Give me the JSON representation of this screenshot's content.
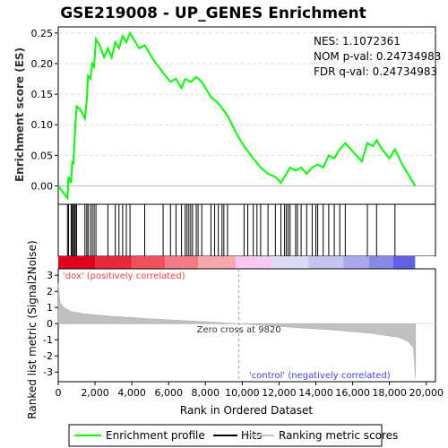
{
  "chart_data": {
    "type": "line",
    "title": "GSE219008 - UP_GENES Enrichment",
    "stats": {
      "nes": "NES: 1.1072361",
      "pval": "NOM p-val: 0.24734983",
      "fdr": "FDR q-val: 0.24734983"
    },
    "es_panel": {
      "ylabel": "Enrichment score (ES)",
      "ylim": [
        -0.03,
        0.26
      ],
      "yticks": [
        0.0,
        0.05,
        0.1,
        0.15,
        0.2,
        0.25
      ],
      "ytick_labels": [
        "0.00",
        "0.05",
        "0.10",
        "0.15",
        "0.20",
        "0.25"
      ],
      "line_color": "#00ff00",
      "points": [
        [
          0,
          0.0
        ],
        [
          500,
          -0.02
        ],
        [
          560,
          0.015
        ],
        [
          700,
          0.005
        ],
        [
          760,
          0.04
        ],
        [
          820,
          0.035
        ],
        [
          880,
          0.07
        ],
        [
          930,
          0.1
        ],
        [
          1000,
          0.13
        ],
        [
          1200,
          0.125
        ],
        [
          1450,
          0.11
        ],
        [
          1550,
          0.14
        ],
        [
          1620,
          0.18
        ],
        [
          1750,
          0.175
        ],
        [
          1850,
          0.2
        ],
        [
          1950,
          0.195
        ],
        [
          2050,
          0.24
        ],
        [
          2250,
          0.23
        ],
        [
          2500,
          0.21
        ],
        [
          2700,
          0.225
        ],
        [
          2900,
          0.21
        ],
        [
          3100,
          0.235
        ],
        [
          3300,
          0.225
        ],
        [
          3500,
          0.245
        ],
        [
          3700,
          0.235
        ],
        [
          3900,
          0.25
        ],
        [
          4100,
          0.24
        ],
        [
          4400,
          0.225
        ],
        [
          4700,
          0.23
        ],
        [
          5200,
          0.205
        ],
        [
          5700,
          0.185
        ],
        [
          6100,
          0.17
        ],
        [
          6400,
          0.175
        ],
        [
          6700,
          0.16
        ],
        [
          6900,
          0.175
        ],
        [
          7200,
          0.17
        ],
        [
          7500,
          0.178
        ],
        [
          7800,
          0.17
        ],
        [
          8300,
          0.145
        ],
        [
          8700,
          0.135
        ],
        [
          9200,
          0.115
        ],
        [
          9700,
          0.085
        ],
        [
          10100,
          0.065
        ],
        [
          10600,
          0.045
        ],
        [
          11000,
          0.03
        ],
        [
          11400,
          0.02
        ],
        [
          11800,
          0.015
        ],
        [
          12100,
          0.005
        ],
        [
          12400,
          0.02
        ],
        [
          12600,
          0.03
        ],
        [
          12900,
          0.025
        ],
        [
          13200,
          0.03
        ],
        [
          13500,
          0.02
        ],
        [
          13800,
          0.03
        ],
        [
          14100,
          0.035
        ],
        [
          14400,
          0.03
        ],
        [
          14700,
          0.05
        ],
        [
          15000,
          0.045
        ],
        [
          15300,
          0.06
        ],
        [
          15600,
          0.07
        ],
        [
          15900,
          0.06
        ],
        [
          16200,
          0.05
        ],
        [
          16500,
          0.04
        ],
        [
          16800,
          0.07
        ],
        [
          17100,
          0.065
        ],
        [
          17300,
          0.075
        ],
        [
          17600,
          0.06
        ],
        [
          18000,
          0.045
        ],
        [
          18300,
          0.06
        ],
        [
          18700,
          0.035
        ],
        [
          19000,
          0.02
        ],
        [
          19400,
          0.0
        ]
      ]
    },
    "hits_panel": {
      "hits": [
        500,
        560,
        700,
        760,
        820,
        880,
        930,
        1000,
        1450,
        1550,
        1620,
        1750,
        1850,
        1950,
        2050,
        2700,
        3100,
        3300,
        3500,
        3700,
        3900,
        4700,
        5700,
        6100,
        6400,
        6700,
        6900,
        7000,
        7100,
        7200,
        7300,
        7500,
        7600,
        7800,
        8300,
        8500,
        8700,
        8900,
        9000,
        9200,
        10100,
        10300,
        10600,
        10800,
        11000,
        11400,
        11800,
        12100,
        12300,
        12400,
        12500,
        12600,
        12900,
        13000,
        13200,
        13500,
        13800,
        14000,
        14100,
        14400,
        14700,
        15000,
        15300,
        15600,
        16800,
        17300,
        18300
      ],
      "heatmap_colors": [
        "#e0001e",
        "#e8283c",
        "#f0505c",
        "#f47a84",
        "#f7a8ae",
        "#f8c8f0",
        "#dcdcf8",
        "#c4c4f0",
        "#a8a8ec",
        "#8888e8",
        "#6060e4",
        "#2020d8"
      ],
      "heatmap_bounds": [
        0,
        2000,
        4000,
        5800,
        7600,
        9650,
        11600,
        13600,
        15500,
        16900,
        18200,
        19400
      ],
      "heatmap_colors_used": [
        "#e0101e",
        "#f06070",
        "#f4909a",
        "#f8c0e8",
        "#d8d8f8",
        "#c0c0f4",
        "#a0a0ec",
        "#7070e4",
        "#3030d0"
      ]
    },
    "metric_panel": {
      "ylabel": "Ranked list metric (Signal2Noise)",
      "ylim": [
        -3.6,
        3.4
      ],
      "yticks": [
        -3,
        -2,
        -1,
        0,
        1,
        2,
        3
      ],
      "ytick_labels": [
        "-3",
        "-2",
        "-1",
        "0",
        "1",
        "2",
        "3"
      ],
      "fill_color": "#c0c0c0",
      "zero_cross": 9820,
      "zero_cross_label": "Zero cross at 9820",
      "pos_label": "'dox' (positively correlated)",
      "neg_label": "'control' (negatively correlated)",
      "pos_color": "#ff4040",
      "neg_color": "#4040ff",
      "curve": [
        [
          0,
          2.5
        ],
        [
          100,
          1.3
        ],
        [
          300,
          1.0
        ],
        [
          700,
          0.75
        ],
        [
          1500,
          0.6
        ],
        [
          3000,
          0.45
        ],
        [
          5000,
          0.3
        ],
        [
          7000,
          0.18
        ],
        [
          9000,
          0.05
        ],
        [
          9820,
          0.0
        ],
        [
          11000,
          -0.1
        ],
        [
          13000,
          -0.25
        ],
        [
          15000,
          -0.4
        ],
        [
          17000,
          -0.6
        ],
        [
          18500,
          -0.85
        ],
        [
          19000,
          -1.1
        ],
        [
          19300,
          -1.5
        ],
        [
          19420,
          -3.4
        ]
      ]
    },
    "xaxis": {
      "xlabel": "Rank in Ordered Dataset",
      "xlim": [
        0,
        20500
      ],
      "xticks": [
        0,
        2000,
        4000,
        6000,
        8000,
        10000,
        12000,
        14000,
        16000,
        18000,
        20000
      ],
      "xtick_labels": [
        "0",
        "2,000",
        "4,000",
        "6,000",
        "8,000",
        "10,000",
        "12,000",
        "14,000",
        "16,000",
        "18,000",
        "20,000"
      ]
    },
    "legend": {
      "items": [
        {
          "label": "Enrichment profile",
          "color": "#00ff00"
        },
        {
          "label": "Hits",
          "color": "#000000"
        },
        {
          "label": "Ranking metric scores",
          "color": "#c0c0c0"
        }
      ]
    }
  }
}
